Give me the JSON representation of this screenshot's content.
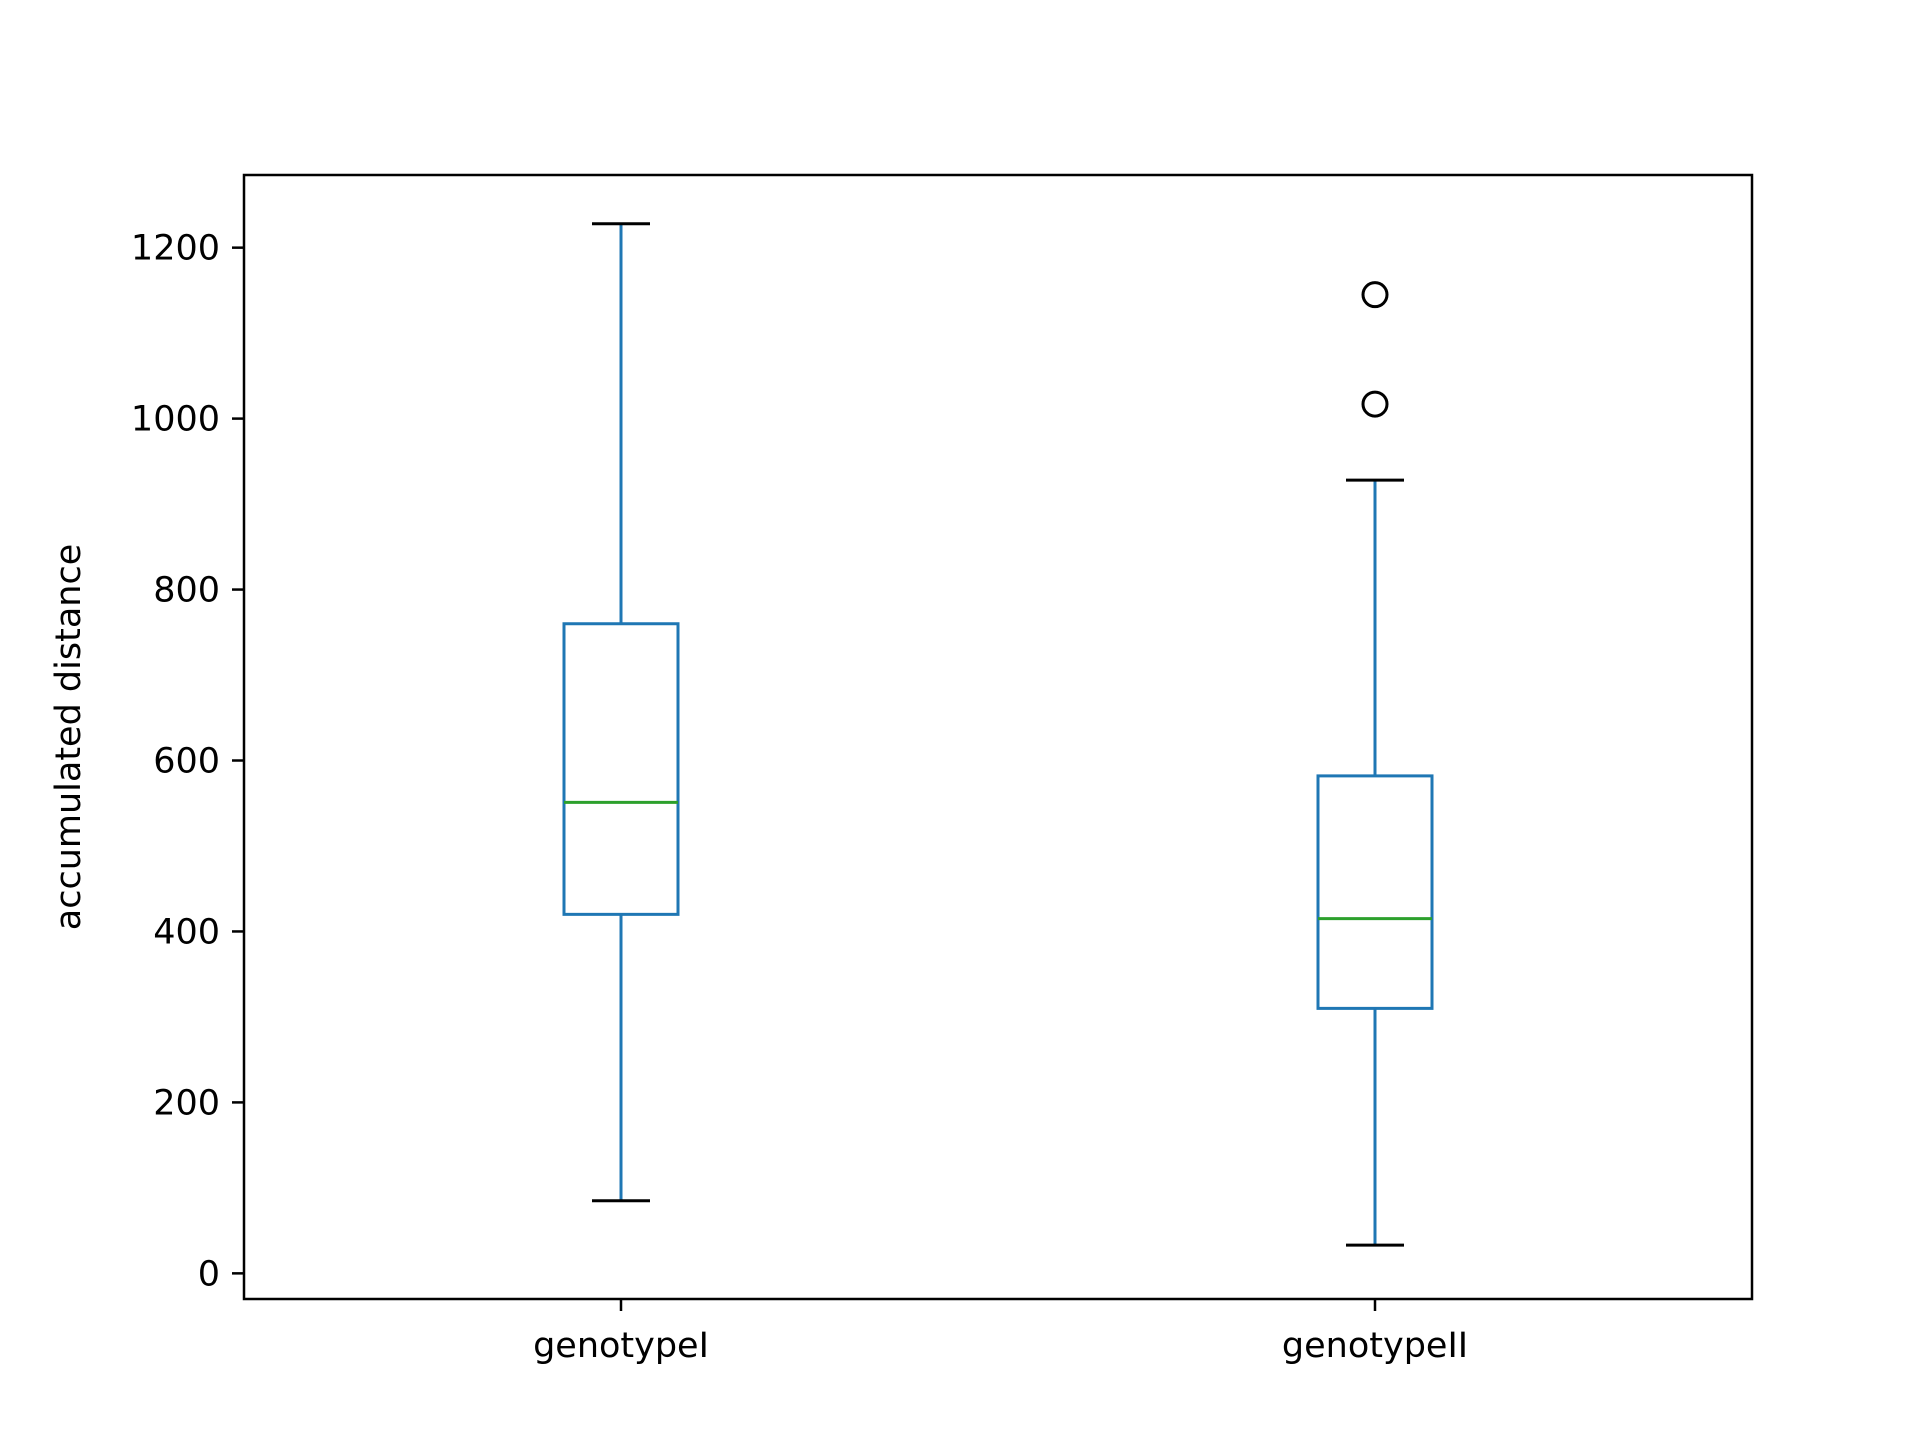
{
  "chart_data": {
    "type": "boxplot",
    "title": "",
    "xlabel": "",
    "ylabel": "accumulated distance",
    "categories": [
      "genotypeI",
      "genotypeII"
    ],
    "ylim": [
      -30,
      1285
    ],
    "yticks": [
      0,
      200,
      400,
      600,
      800,
      1000,
      1200
    ],
    "grid": false,
    "legend": "none",
    "boxes": [
      {
        "category": "genotypeI",
        "whisker_low": 85,
        "q1": 420,
        "median": 551,
        "q3": 760,
        "whisker_high": 1228,
        "outliers": []
      },
      {
        "category": "genotypeII",
        "whisker_low": 33,
        "q1": 310,
        "median": 415,
        "q3": 582,
        "whisker_high": 928,
        "outliers": [
          1017,
          1145
        ]
      }
    ],
    "colors": {
      "box": "#1f77b4",
      "whisker": "#1f77b4",
      "median": "#2ca02c",
      "cap": "#000000",
      "outlier": "#000000"
    }
  }
}
